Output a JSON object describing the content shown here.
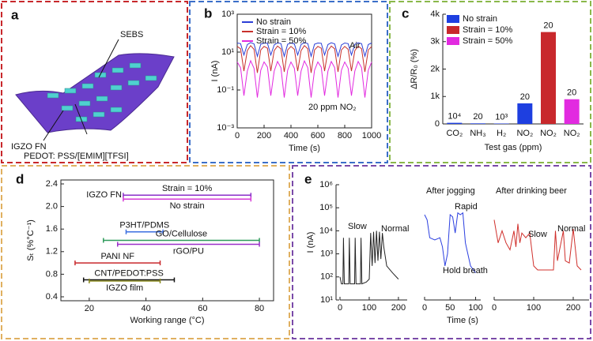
{
  "illustration": {
    "panel": "a",
    "labels": [
      "SEBS",
      "IGZO FN",
      "PEDOT: PSS/[EMIM][TFSI]"
    ]
  },
  "chart_data": [
    {
      "type": "line",
      "panel": "b",
      "log_scale": true,
      "legend": "top-left",
      "xlabel": "Time (s)",
      "ylabel": "I (nA)",
      "annotations": [
        "Air",
        "20 ppm NO₂"
      ],
      "x": [
        0,
        25,
        50,
        75,
        100,
        125,
        150,
        175,
        200,
        225,
        250,
        275,
        300,
        325,
        350,
        375,
        400,
        425,
        450,
        475,
        500,
        525,
        550,
        575,
        600,
        625,
        650,
        675,
        700,
        725,
        750,
        775,
        800,
        825,
        850,
        875,
        900,
        925,
        950,
        975,
        1000
      ],
      "xlim": [
        0,
        1000
      ],
      "xticks": [
        0,
        200,
        400,
        600,
        800,
        1000
      ],
      "ylim": [
        0.001,
        1000
      ],
      "yticks": [
        {
          "value": 0.001,
          "label": "10⁻³"
        },
        {
          "value": 0.1,
          "label": "10⁻¹"
        },
        {
          "value": 10,
          "label": "10¹"
        },
        {
          "value": 1000,
          "label": "10³"
        }
      ],
      "series": [
        {
          "name": "No strain",
          "color": "#2b3fd6",
          "values": [
            30,
            28,
            7,
            25,
            32,
            27,
            6,
            26,
            30,
            29,
            7,
            24,
            31,
            28,
            6,
            26,
            30,
            27,
            7,
            25,
            32,
            28,
            6,
            26,
            30,
            29,
            7,
            25,
            31,
            27,
            6,
            24,
            30,
            28,
            7,
            26,
            31,
            28,
            6,
            25,
            30
          ]
        },
        {
          "name": "Strain = 10%",
          "color": "#c8302c",
          "values": [
            20,
            15,
            1,
            12,
            22,
            14,
            0.8,
            13,
            20,
            16,
            1,
            12,
            21,
            15,
            0.9,
            13,
            20,
            14,
            1,
            12,
            22,
            15,
            0.8,
            13,
            20,
            16,
            1,
            12,
            21,
            15,
            0.9,
            13,
            20,
            14,
            1,
            12,
            21,
            15,
            0.9,
            13,
            20
          ]
        },
        {
          "name": "Strain = 50%",
          "color": "#e22ae0",
          "values": [
            3,
            1.5,
            0.05,
            1,
            3.5,
            1.4,
            0.04,
            1.1,
            3,
            1.6,
            0.05,
            1,
            3.2,
            1.5,
            0.04,
            1.1,
            3,
            1.4,
            0.05,
            1,
            3.4,
            1.5,
            0.04,
            1.1,
            3,
            1.6,
            0.05,
            1,
            3.2,
            1.5,
            0.04,
            1.1,
            3,
            1.4,
            0.05,
            1,
            3.2,
            1.5,
            0.04,
            1.1,
            3
          ]
        }
      ]
    },
    {
      "type": "bar",
      "panel": "c",
      "legend": "top-left",
      "xlabel": "Test gas (ppm)",
      "ylabel": "ΔR/R₀ (%)",
      "categories": [
        "CO₂",
        "NH₃",
        "H₂",
        "NO₂",
        "NO₂",
        "NO₂"
      ],
      "bar_annotations": [
        "10⁴",
        "20",
        "10³",
        "20",
        "20",
        "20"
      ],
      "ylim": [
        0,
        4000
      ],
      "yticks": [
        0,
        {
          "value": 1000,
          "label": "1k"
        },
        {
          "value": 2000,
          "label": "2k"
        },
        {
          "value": 3000,
          "label": "3k"
        },
        {
          "value": 4000,
          "label": "4k"
        }
      ],
      "series": [
        {
          "name": "No strain",
          "color": "#1e3fe0",
          "values": [
            40,
            20,
            15,
            750,
            null,
            null
          ]
        },
        {
          "name": "Strain = 10%",
          "color": "#c8282c",
          "values": [
            null,
            null,
            null,
            null,
            3350,
            null
          ]
        },
        {
          "name": "Strain = 50%",
          "color": "#e22ae0",
          "values": [
            null,
            null,
            null,
            null,
            null,
            900
          ]
        }
      ]
    },
    {
      "type": "range",
      "panel": "d",
      "xlabel": "Working range (°C)",
      "ylabel": "Sₜ (%°C⁻¹)",
      "annotations": [
        "IGZO FN"
      ],
      "xlim": [
        10,
        85
      ],
      "xticks": [
        20,
        40,
        60,
        80
      ],
      "ylim": [
        0.4,
        2.4
      ],
      "yticks": [
        0.4,
        0.8,
        1.2,
        1.6,
        {
          "value": 2,
          "label": "2.0"
        },
        2.4
      ],
      "series": [
        {
          "name": "Strain = 10%",
          "color": "#8b2fc9",
          "range": [
            32,
            77
          ],
          "value": 2.2
        },
        {
          "name": "No strain",
          "color": "#d63ad6",
          "range": [
            32,
            77
          ],
          "value": 2.13
        },
        {
          "name": "P3HT/PDMS",
          "color": "#3b6fe0",
          "range": [
            33,
            46
          ],
          "value": 1.55
        },
        {
          "name": "GO/Cellulose",
          "color": "#2e9a5a",
          "range": [
            25,
            80
          ],
          "value": 1.4
        },
        {
          "name": "rGO/PU",
          "color": "#9a2fc9",
          "range": [
            30,
            80
          ],
          "value": 1.33
        },
        {
          "name": "PANI NF",
          "color": "#c8282c",
          "range": [
            15,
            45
          ],
          "value": 1.0
        },
        {
          "name": "CNT/PEDOT:PSS",
          "color": "#111111",
          "range": [
            18,
            50
          ],
          "value": 0.7
        },
        {
          "name": "IGZO film",
          "color": "#8a8a1e",
          "range": [
            20,
            45
          ],
          "value": 0.68
        }
      ]
    },
    {
      "type": "line",
      "panel": "e",
      "log_scale": true,
      "xlabel": "Time (s)",
      "ylabel": "I (nA)",
      "annotations": [
        "Slow",
        "Normal",
        "Rapid",
        "Hold breath",
        "Slow",
        "Normal"
      ],
      "ylim": [
        10,
        1000000
      ],
      "yticks": [
        {
          "value": 10,
          "label": "10¹"
        },
        {
          "value": 100,
          "label": "10²"
        },
        {
          "value": 1000,
          "label": "10³"
        },
        {
          "value": 10000,
          "label": "10⁴"
        },
        {
          "value": 100000,
          "label": "10⁵"
        },
        {
          "value": 1000000,
          "label": "10⁶"
        }
      ],
      "series": [
        {
          "color": "#222222",
          "xlim": [
            0,
            230
          ],
          "xticks": [
            0,
            100,
            200
          ],
          "x": [
            0,
            5,
            10,
            12,
            15,
            25,
            30,
            32,
            35,
            45,
            50,
            52,
            55,
            65,
            70,
            72,
            75,
            90,
            100,
            105,
            110,
            115,
            120,
            125,
            130,
            135,
            140,
            145,
            150,
            160,
            180,
            200
          ],
          "values": [
            100,
            50,
            50,
            5000,
            50,
            50,
            50,
            5000,
            50,
            50,
            50,
            5000,
            50,
            50,
            50,
            5000,
            50,
            60,
            80,
            8000,
            300,
            9000,
            400,
            10000,
            500,
            9000,
            600,
            8000,
            2000,
            300,
            150,
            80
          ]
        },
        {
          "name": "After jogging",
          "color": "#2b3fe0",
          "xlim": [
            0,
            110
          ],
          "xticks": [
            0,
            50,
            100
          ],
          "x": [
            0,
            5,
            10,
            20,
            30,
            35,
            40,
            45,
            50,
            55,
            60,
            65,
            70,
            75,
            80,
            90,
            100
          ],
          "values": [
            50000,
            30000,
            5000,
            4000,
            5000,
            2000,
            300,
            1000,
            50000,
            40000,
            8000,
            60000,
            50000,
            60000,
            3000,
            300,
            150
          ]
        },
        {
          "name": "After drinking beer",
          "color": "#d0302c",
          "xlim": [
            0,
            240
          ],
          "xticks": [
            0,
            100,
            200
          ],
          "x": [
            0,
            10,
            20,
            30,
            40,
            50,
            55,
            60,
            65,
            70,
            80,
            90,
            100,
            110,
            150,
            155,
            160,
            175,
            180,
            190,
            200,
            210,
            220
          ],
          "values": [
            30000,
            3000,
            10000,
            3000,
            1500,
            10000,
            2000,
            20000,
            3000,
            8000,
            5000,
            8000,
            300,
            200,
            200,
            10000,
            500,
            10000,
            500,
            400,
            12000,
            300,
            200
          ]
        }
      ]
    }
  ]
}
